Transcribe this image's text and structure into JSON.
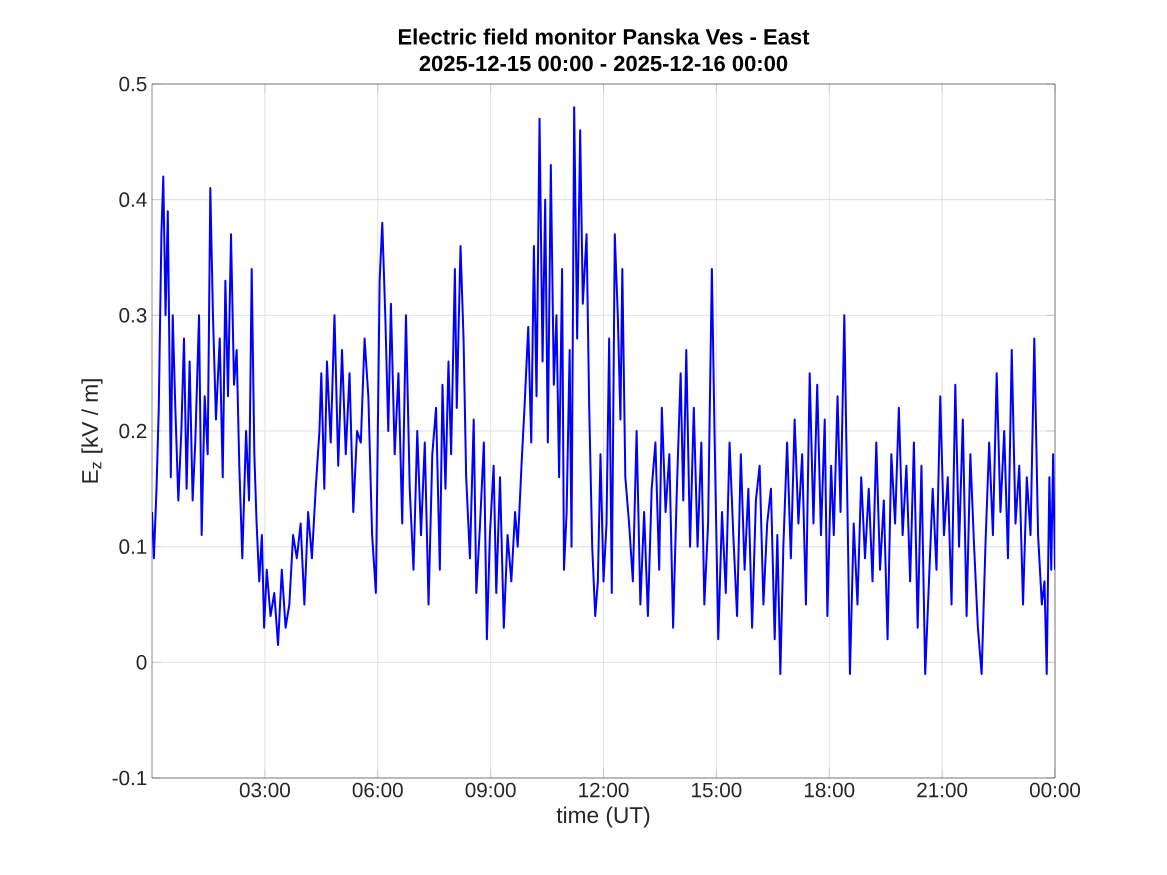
{
  "chart_data": {
    "type": "line",
    "title": "Electric field monitor Panska Ves - East",
    "subtitle": "2025-12-15 00:00 - 2025-12-16 00:00",
    "xlabel": "time (UT)",
    "ylabel": "E$_{z}$ [kV / m]",
    "xlim": [
      0,
      24
    ],
    "xticks": [
      {
        "value": 3,
        "label": "03:00"
      },
      {
        "value": 6,
        "label": "06:00"
      },
      {
        "value": 9,
        "label": "09:00"
      },
      {
        "value": 12,
        "label": "12:00"
      },
      {
        "value": 15,
        "label": "15:00"
      },
      {
        "value": 18,
        "label": "18:00"
      },
      {
        "value": 21,
        "label": "21:00"
      },
      {
        "value": 24,
        "label": "00:00"
      }
    ],
    "ylim": [
      -0.1,
      0.5
    ],
    "yticks": [
      -0.1,
      0,
      0.1,
      0.2,
      0.3,
      0.4,
      0.5
    ],
    "grid": true,
    "marker": "none",
    "line_style": "solid",
    "series": [
      {
        "color": "#0000ff",
        "x": [
          0.0,
          0.05,
          0.12,
          0.18,
          0.25,
          0.3,
          0.36,
          0.42,
          0.5,
          0.55,
          0.62,
          0.7,
          0.78,
          0.85,
          0.92,
          1.0,
          1.08,
          1.15,
          1.25,
          1.32,
          1.4,
          1.48,
          1.55,
          1.62,
          1.7,
          1.8,
          1.88,
          1.95,
          2.02,
          2.1,
          2.18,
          2.25,
          2.32,
          2.4,
          2.5,
          2.58,
          2.65,
          2.72,
          2.78,
          2.85,
          2.92,
          2.98,
          3.05,
          3.15,
          3.25,
          3.35,
          3.45,
          3.55,
          3.65,
          3.75,
          3.85,
          3.95,
          4.05,
          4.15,
          4.25,
          4.35,
          4.45,
          4.5,
          4.58,
          4.65,
          4.75,
          4.85,
          4.95,
          5.05,
          5.15,
          5.25,
          5.35,
          5.45,
          5.55,
          5.65,
          5.75,
          5.85,
          5.95,
          6.05,
          6.12,
          6.2,
          6.28,
          6.35,
          6.45,
          6.55,
          6.65,
          6.75,
          6.85,
          6.95,
          7.05,
          7.15,
          7.25,
          7.35,
          7.45,
          7.55,
          7.65,
          7.72,
          7.8,
          7.88,
          7.95,
          8.05,
          8.1,
          8.2,
          8.28,
          8.35,
          8.45,
          8.55,
          8.62,
          8.72,
          8.82,
          8.9,
          8.98,
          9.08,
          9.15,
          9.25,
          9.35,
          9.45,
          9.55,
          9.65,
          9.72,
          9.82,
          9.9,
          10.0,
          10.08,
          10.15,
          10.22,
          10.3,
          10.38,
          10.45,
          10.52,
          10.6,
          10.68,
          10.75,
          10.82,
          10.9,
          10.95,
          11.02,
          11.1,
          11.15,
          11.22,
          11.3,
          11.38,
          11.45,
          11.55,
          11.62,
          11.7,
          11.78,
          11.85,
          11.92,
          12.0,
          12.08,
          12.15,
          12.22,
          12.3,
          12.38,
          12.45,
          12.5,
          12.58,
          12.68,
          12.78,
          12.88,
          12.98,
          13.08,
          13.18,
          13.28,
          13.38,
          13.48,
          13.55,
          13.65,
          13.75,
          13.85,
          13.95,
          14.05,
          14.12,
          14.2,
          14.3,
          14.4,
          14.5,
          14.6,
          14.68,
          14.78,
          14.88,
          14.95,
          15.05,
          15.15,
          15.25,
          15.35,
          15.45,
          15.55,
          15.65,
          15.75,
          15.85,
          15.95,
          16.05,
          16.15,
          16.25,
          16.35,
          16.45,
          16.55,
          16.62,
          16.7,
          16.78,
          16.88,
          16.98,
          17.08,
          17.18,
          17.28,
          17.38,
          17.48,
          17.58,
          17.68,
          17.78,
          17.88,
          17.95,
          18.05,
          18.12,
          18.22,
          18.3,
          18.4,
          18.5,
          18.55,
          18.65,
          18.75,
          18.85,
          18.95,
          19.05,
          19.15,
          19.25,
          19.35,
          19.45,
          19.55,
          19.65,
          19.75,
          19.85,
          19.95,
          20.05,
          20.15,
          20.25,
          20.35,
          20.45,
          20.55,
          20.65,
          20.75,
          20.85,
          20.95,
          21.05,
          21.15,
          21.25,
          21.35,
          21.45,
          21.55,
          21.65,
          21.75,
          21.85,
          21.95,
          22.05,
          22.15,
          22.25,
          22.35,
          22.45,
          22.55,
          22.65,
          22.75,
          22.85,
          22.95,
          23.05,
          23.15,
          23.25,
          23.35,
          23.45,
          23.55,
          23.65,
          23.72,
          23.78,
          23.85,
          23.9,
          23.95,
          24.0
        ],
        "values": [
          0.13,
          0.09,
          0.15,
          0.22,
          0.37,
          0.42,
          0.3,
          0.39,
          0.16,
          0.3,
          0.22,
          0.14,
          0.2,
          0.28,
          0.15,
          0.26,
          0.14,
          0.19,
          0.3,
          0.11,
          0.23,
          0.18,
          0.41,
          0.3,
          0.21,
          0.28,
          0.16,
          0.33,
          0.23,
          0.37,
          0.24,
          0.27,
          0.17,
          0.09,
          0.2,
          0.14,
          0.34,
          0.18,
          0.12,
          0.07,
          0.11,
          0.03,
          0.08,
          0.04,
          0.06,
          0.015,
          0.08,
          0.03,
          0.05,
          0.11,
          0.09,
          0.12,
          0.05,
          0.13,
          0.09,
          0.15,
          0.2,
          0.25,
          0.15,
          0.26,
          0.19,
          0.3,
          0.17,
          0.27,
          0.18,
          0.25,
          0.13,
          0.2,
          0.19,
          0.28,
          0.23,
          0.11,
          0.06,
          0.33,
          0.38,
          0.3,
          0.2,
          0.31,
          0.18,
          0.25,
          0.12,
          0.3,
          0.15,
          0.08,
          0.2,
          0.11,
          0.19,
          0.05,
          0.18,
          0.22,
          0.08,
          0.24,
          0.15,
          0.26,
          0.18,
          0.34,
          0.22,
          0.36,
          0.28,
          0.16,
          0.09,
          0.21,
          0.06,
          0.12,
          0.19,
          0.02,
          0.11,
          0.17,
          0.06,
          0.16,
          0.03,
          0.11,
          0.07,
          0.13,
          0.1,
          0.17,
          0.22,
          0.29,
          0.19,
          0.36,
          0.23,
          0.47,
          0.26,
          0.4,
          0.19,
          0.43,
          0.24,
          0.3,
          0.16,
          0.34,
          0.08,
          0.13,
          0.27,
          0.1,
          0.48,
          0.28,
          0.46,
          0.31,
          0.37,
          0.22,
          0.1,
          0.04,
          0.07,
          0.18,
          0.07,
          0.12,
          0.28,
          0.06,
          0.37,
          0.3,
          0.21,
          0.34,
          0.16,
          0.12,
          0.07,
          0.2,
          0.05,
          0.13,
          0.04,
          0.15,
          0.19,
          0.08,
          0.22,
          0.13,
          0.18,
          0.03,
          0.15,
          0.25,
          0.14,
          0.27,
          0.1,
          0.22,
          0.1,
          0.19,
          0.05,
          0.12,
          0.34,
          0.2,
          0.02,
          0.13,
          0.06,
          0.19,
          0.11,
          0.04,
          0.18,
          0.08,
          0.15,
          0.03,
          0.14,
          0.17,
          0.05,
          0.12,
          0.15,
          0.02,
          0.11,
          -0.01,
          0.1,
          0.19,
          0.09,
          0.21,
          0.12,
          0.18,
          0.05,
          0.25,
          0.12,
          0.24,
          0.11,
          0.21,
          0.04,
          0.17,
          0.11,
          0.23,
          0.13,
          0.3,
          0.1,
          -0.01,
          0.12,
          0.05,
          0.16,
          0.09,
          0.15,
          0.07,
          0.19,
          0.08,
          0.14,
          0.02,
          0.18,
          0.12,
          0.22,
          0.11,
          0.17,
          0.07,
          0.19,
          0.03,
          0.17,
          -0.01,
          0.07,
          0.15,
          0.08,
          0.23,
          0.11,
          0.16,
          0.05,
          0.24,
          0.1,
          0.21,
          0.04,
          0.18,
          0.1,
          0.03,
          -0.01,
          0.1,
          0.19,
          0.11,
          0.25,
          0.13,
          0.2,
          0.09,
          0.27,
          0.12,
          0.17,
          0.05,
          0.16,
          0.11,
          0.28,
          0.11,
          0.05,
          0.07,
          -0.01,
          0.16,
          0.08,
          0.18,
          0.08
        ]
      }
    ]
  }
}
